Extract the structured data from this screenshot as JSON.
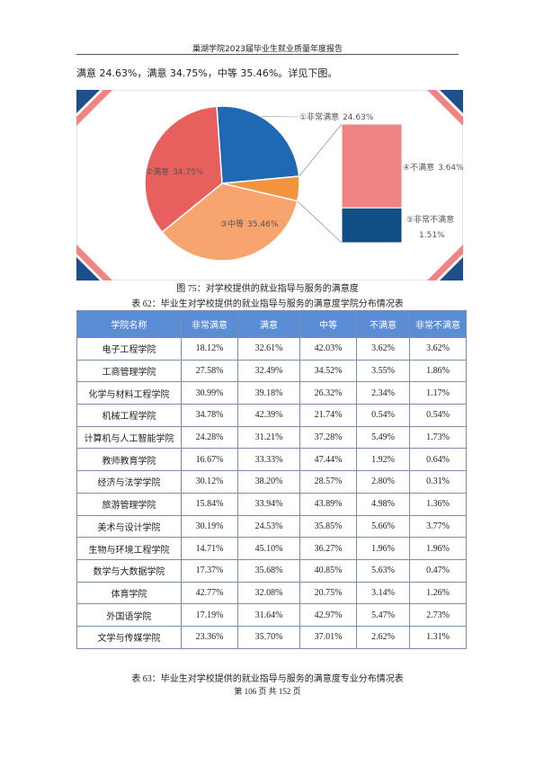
{
  "header": {
    "title": "巢湖学院2023届毕业生就业质量年度报告"
  },
  "intro": "满意 24.63%，满意 34.75%，中等 35.46%。详见下图。",
  "chart_data": {
    "type": "bar-of-pie",
    "categories": [
      "①非常满意",
      "②满意",
      "③中等",
      "④不满意",
      "⑤非常不满意"
    ],
    "values": [
      24.63,
      34.75,
      35.46,
      3.64,
      1.51
    ],
    "value_labels": [
      "24.63%",
      "34.75%",
      "35.46%",
      "3.64%",
      "1.51%"
    ],
    "colors": [
      "#1f69b4",
      "#e8605e",
      "#f7a46e",
      "#f08383",
      "#124e86"
    ],
    "other_color": "#f3923f"
  },
  "figure_caption": "图 75：对学校提供的就业指导与服务的满意度",
  "table_caption": "表 62：毕业生对学校提供的就业指导与服务的满意度学院分布情况表",
  "table": {
    "columns": [
      "学院名称",
      "非常满意",
      "满意",
      "中等",
      "不满意",
      "非常不满意"
    ],
    "rows": [
      [
        "电子工程学院",
        "18.12%",
        "32.61%",
        "42.03%",
        "3.62%",
        "3.62%"
      ],
      [
        "工商管理学院",
        "27.58%",
        "32.49%",
        "34.52%",
        "3.55%",
        "1.86%"
      ],
      [
        "化学与材料工程学院",
        "30.99%",
        "39.18%",
        "26.32%",
        "2.34%",
        "1.17%"
      ],
      [
        "机械工程学院",
        "34.78%",
        "42.39%",
        "21.74%",
        "0.54%",
        "0.54%"
      ],
      [
        "计算机与人工智能学院",
        "24.28%",
        "31.21%",
        "37.28%",
        "5.49%",
        "1.73%"
      ],
      [
        "教师教育学院",
        "16.67%",
        "33.33%",
        "47.44%",
        "1.92%",
        "0.64%"
      ],
      [
        "经济与法学学院",
        "30.12%",
        "38.20%",
        "28.57%",
        "2.80%",
        "0.31%"
      ],
      [
        "旅游管理学院",
        "15.84%",
        "33.94%",
        "43.89%",
        "4.98%",
        "1.36%"
      ],
      [
        "美术与设计学院",
        "30.19%",
        "24.53%",
        "35.85%",
        "5.66%",
        "3.77%"
      ],
      [
        "生物与环境工程学院",
        "14.71%",
        "45.10%",
        "36.27%",
        "1.96%",
        "1.96%"
      ],
      [
        "数学与大数据学院",
        "17.37%",
        "35.68%",
        "40.85%",
        "5.63%",
        "0.47%"
      ],
      [
        "体育学院",
        "42.77%",
        "32.08%",
        "20.75%",
        "3.14%",
        "1.26%"
      ],
      [
        "外国语学院",
        "17.19%",
        "31.64%",
        "42.97%",
        "5.47%",
        "2.73%"
      ],
      [
        "文学与传媒学院",
        "23.36%",
        "35.70%",
        "37.01%",
        "2.62%",
        "1.31%"
      ]
    ]
  },
  "next_caption": "表 63：毕业生对学校提供的就业指导与服务的满意度专业分布情况表",
  "footer": "第 106 页 共 152 页"
}
